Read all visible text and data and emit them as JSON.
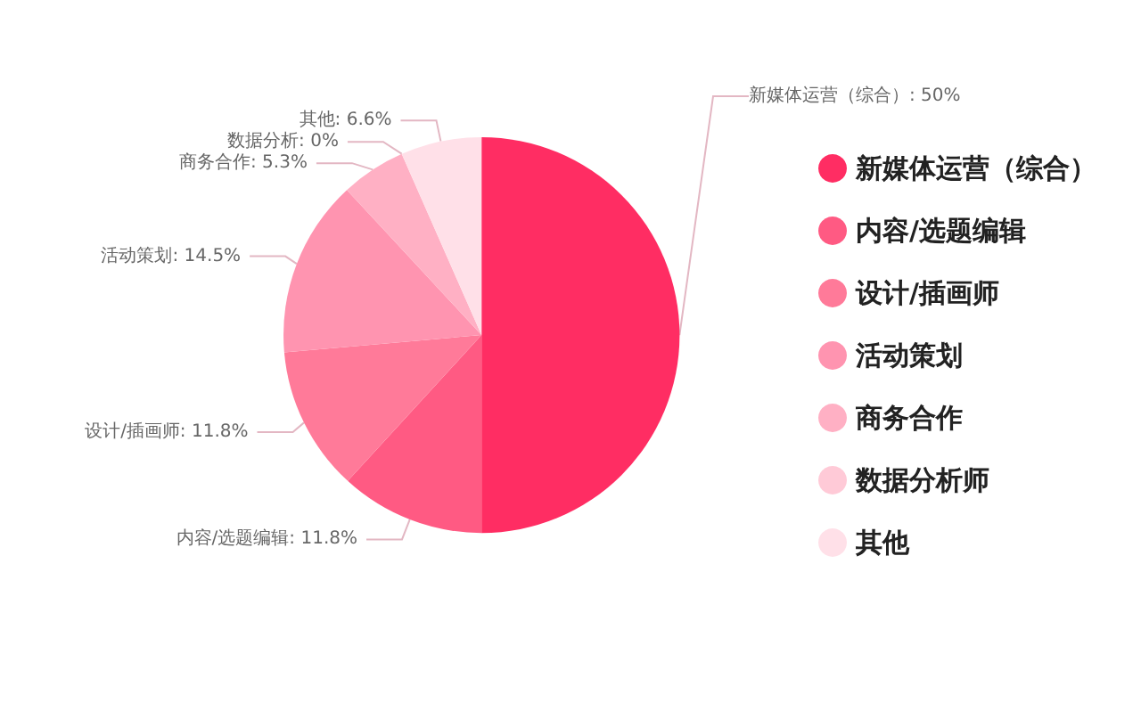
{
  "chart_data": {
    "type": "pie",
    "categories": [
      "新媒体运营（综合）",
      "内容/选题编辑",
      "设计/插画师",
      "活动策划",
      "商务合作",
      "数据分析师",
      "其他"
    ],
    "values": [
      50,
      11.8,
      11.8,
      14.5,
      5.3,
      0,
      6.6
    ],
    "value_labels": [
      "新媒体运营（综合）: 50%",
      "内容/选题编辑: 11.8%",
      "设计/插画师: 11.8%",
      "活动策划: 14.5%",
      "商务合作: 5.3%",
      "数据分析: 0%",
      "其他: 6.6%"
    ],
    "colors": [
      "#ff2d63",
      "#ff5a83",
      "#ff7a99",
      "#ff94b0",
      "#ffb0c4",
      "#ffcad7",
      "#ffe0e8"
    ],
    "legend": "right"
  }
}
